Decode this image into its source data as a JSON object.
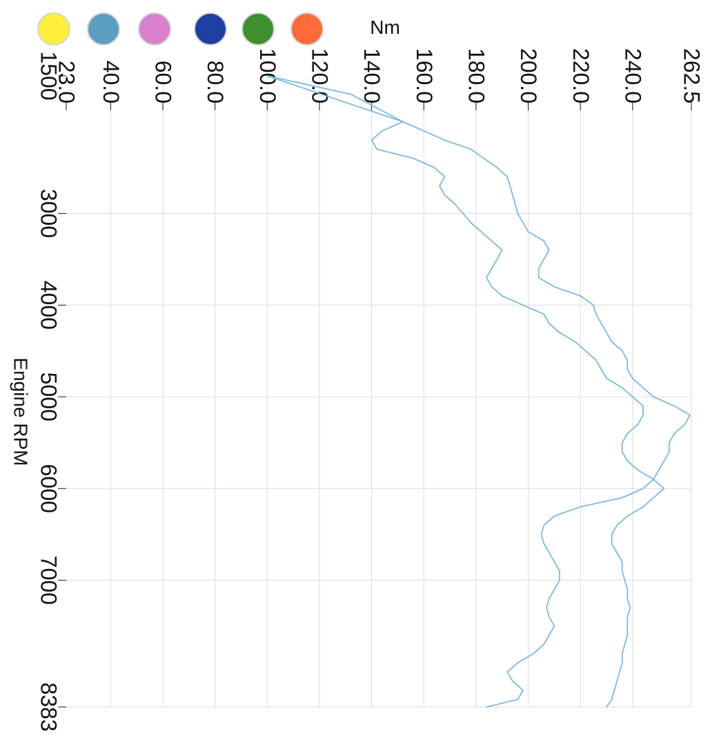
{
  "chart_data": {
    "type": "line",
    "title": "",
    "xlabel": "Engine RPM",
    "ylabel": "Nm",
    "xlim": [
      1500,
      8383
    ],
    "ylim": [
      23.0,
      262.5
    ],
    "x_ticks": [
      "1500",
      "3000",
      "4000",
      "5000",
      "6000",
      "7000",
      "8383"
    ],
    "y_ticks": [
      "23.0",
      "40.0",
      "60.0",
      "80.0",
      "100.0",
      "120.0",
      "140.0",
      "160.0",
      "180.0",
      "200.0",
      "220.0",
      "240.0",
      "262.5"
    ],
    "grid": true,
    "legend_position": "top",
    "legend_colors": [
      "#ffef3a",
      "#5b9ec0",
      "#d97fcc",
      "#1f3fa3",
      "#3f8f2f",
      "#ff6a3a"
    ],
    "line_color": "#7db8dc",
    "series": [
      {
        "x": [
          1500,
          1700,
          2000,
          2100,
          2200,
          2300,
          2500,
          2600,
          2700,
          2800,
          2900,
          3000,
          3100,
          3200,
          3300,
          3400,
          3500,
          3600,
          3700,
          3800,
          3900,
          4000,
          4100,
          4200,
          4300,
          4400,
          4500,
          4600,
          4700,
          4800,
          4900,
          5000,
          5100,
          5200,
          5300,
          5400,
          5500,
          5600,
          5700,
          5800,
          5900,
          6000,
          6100,
          6200,
          6300,
          6400,
          6500,
          6600,
          6700,
          6800,
          6900,
          7000,
          7100,
          7200,
          7300,
          7400,
          7500,
          7600,
          7700,
          7800,
          7900,
          8000,
          8100,
          8200,
          8300,
          8383
        ],
        "values": [
          100,
          132,
          152,
          160,
          168,
          178,
          188,
          192,
          193,
          194,
          195,
          196,
          198,
          200,
          206,
          208,
          206,
          204,
          204,
          210,
          220,
          225,
          226,
          228,
          230,
          232,
          236,
          238,
          238,
          240,
          244,
          248,
          256,
          262,
          260,
          256,
          254,
          254,
          252,
          250,
          248,
          244,
          236,
          220,
          210,
          206,
          205,
          206,
          208,
          210,
          212,
          212,
          210,
          208,
          207,
          208,
          210,
          208,
          206,
          202,
          196,
          192,
          194,
          198,
          196,
          184
        ]
      },
      {
        "x": [
          1500,
          2000,
          2100,
          2200,
          2300,
          2400,
          2500,
          2600,
          2700,
          2800,
          2900,
          3000,
          3100,
          3200,
          3300,
          3400,
          3500,
          3600,
          3700,
          3800,
          3900,
          4000,
          4100,
          4200,
          4300,
          4400,
          4500,
          4600,
          4700,
          4800,
          4900,
          5000,
          5100,
          5200,
          5300,
          5400,
          5500,
          5600,
          5700,
          5800,
          5900,
          6000,
          6100,
          6200,
          6300,
          6400,
          6500,
          6600,
          6700,
          6800,
          6900,
          7000,
          7100,
          7200,
          7300,
          7400,
          7500,
          7600,
          7700,
          7800,
          7900,
          8000,
          8100,
          8200,
          8300,
          8383
        ],
        "values": [
          100,
          152,
          144,
          140,
          142,
          156,
          164,
          168,
          166,
          168,
          172,
          175,
          178,
          182,
          186,
          190,
          188,
          186,
          184,
          186,
          190,
          198,
          206,
          208,
          212,
          218,
          222,
          226,
          228,
          230,
          236,
          240,
          244,
          244,
          242,
          238,
          236,
          236,
          238,
          242,
          248,
          252,
          248,
          244,
          238,
          234,
          232,
          232,
          234,
          236,
          236,
          237,
          238,
          238,
          239,
          238,
          238,
          238,
          237,
          236,
          236,
          235,
          234,
          233,
          232,
          230
        ]
      }
    ]
  }
}
